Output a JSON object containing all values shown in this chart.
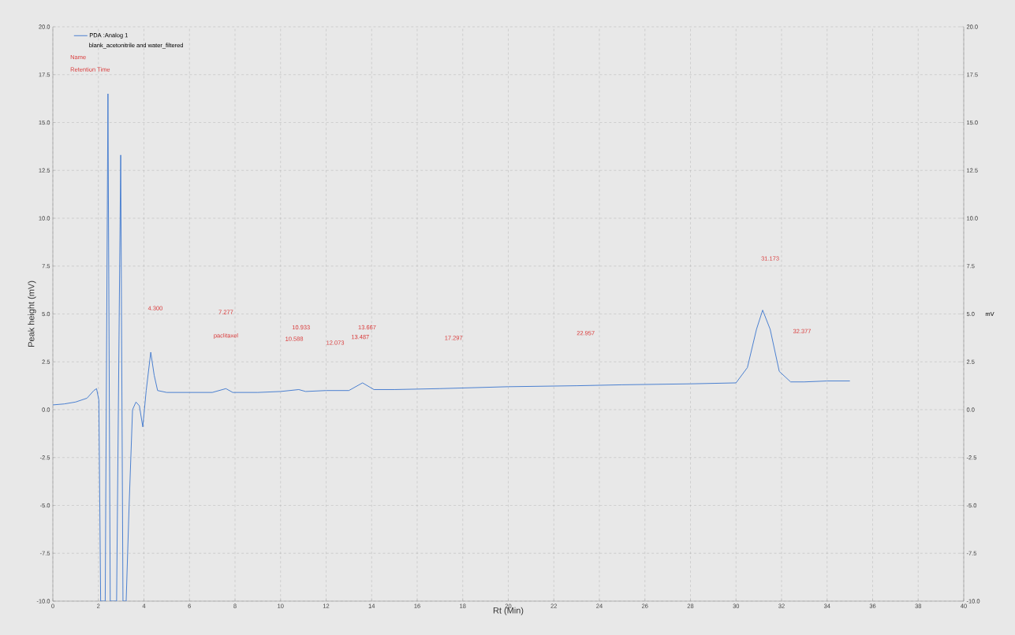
{
  "chart_data": {
    "type": "line",
    "xlabel": "Rt (Min)",
    "ylabel": "Peak height (mV)",
    "y2label": "mV",
    "xlim": [
      0,
      40
    ],
    "xticks": [
      0,
      2,
      4,
      6,
      8,
      10,
      12,
      14,
      16,
      18,
      20,
      22,
      24,
      26,
      28,
      30,
      32,
      34,
      36,
      38,
      40
    ],
    "ylim": [
      -10,
      20
    ],
    "yticks": [
      {
        "value": -10,
        "label": "-10.0"
      },
      {
        "value": -7.5,
        "label": "-7.5"
      },
      {
        "value": -5,
        "label": "-5.0"
      },
      {
        "value": -2.5,
        "label": "-2.5"
      },
      {
        "value": 0,
        "label": "0.0"
      },
      {
        "value": 2.5,
        "label": "2.5"
      },
      {
        "value": 5,
        "label": "5.0"
      },
      {
        "value": 7.5,
        "label": "7.5"
      },
      {
        "value": 10,
        "label": "10.0"
      },
      {
        "value": 12.5,
        "label": "12.5"
      },
      {
        "value": 15,
        "label": "15.0"
      },
      {
        "value": 17.5,
        "label": "17.5"
      },
      {
        "value": 20,
        "label": "20.0"
      }
    ],
    "y2lim": [
      -10,
      20
    ],
    "y2ticks": [
      {
        "value": -10,
        "label": "-10.0"
      },
      {
        "value": -7.5,
        "label": "-7.5"
      },
      {
        "value": -5,
        "label": "-5.0"
      },
      {
        "value": -2.5,
        "label": "-2.5"
      },
      {
        "value": 0,
        "label": "0.0"
      },
      {
        "value": 2.5,
        "label": "2.5"
      },
      {
        "value": 5,
        "label": "5.0"
      },
      {
        "value": 7.5,
        "label": "7.5"
      },
      {
        "value": 10,
        "label": "10.0"
      },
      {
        "value": 12.5,
        "label": "12.5"
      },
      {
        "value": 15,
        "label": "15.0"
      },
      {
        "value": 17.5,
        "label": "17.5"
      },
      {
        "value": 20,
        "label": "20.0"
      }
    ],
    "grid": true,
    "legend": "top left",
    "marker": "none",
    "line_style": "solid",
    "series": [
      {
        "name": "PDA :Analog 1",
        "color": "#4a7fd0",
        "x": [
          0,
          0.5,
          1,
          1.5,
          1.8,
          1.92,
          2.02,
          2.1,
          2.3,
          2.42,
          2.52,
          2.62,
          2.8,
          2.98,
          3.08,
          3.22,
          3.35,
          3.5,
          3.65,
          3.8,
          3.95,
          4.1,
          4.3,
          4.45,
          4.6,
          5,
          6,
          7,
          7.6,
          7.9,
          9,
          10,
          10.8,
          11.1,
          12,
          13,
          13.6,
          14.1,
          15,
          17,
          20,
          23,
          25,
          28,
          30,
          30.5,
          30.9,
          31.17,
          31.5,
          31.9,
          32.4,
          33,
          34,
          35
        ],
        "values": [
          0.25,
          0.3,
          0.4,
          0.6,
          1.0,
          1.1,
          0.5,
          -10,
          -10,
          16.5,
          -10,
          -10,
          -10,
          13.3,
          -10,
          -10,
          -5,
          0.0,
          0.4,
          0.2,
          -0.9,
          1.0,
          3.0,
          1.8,
          1.0,
          0.9,
          0.9,
          0.9,
          1.1,
          0.9,
          0.9,
          0.95,
          1.05,
          0.95,
          1.0,
          1.0,
          1.4,
          1.05,
          1.05,
          1.1,
          1.2,
          1.25,
          1.3,
          1.35,
          1.4,
          2.2,
          4.2,
          5.2,
          4.2,
          2.0,
          1.45,
          1.45,
          1.5,
          1.5
        ]
      }
    ],
    "annotations": [
      "blank_acetonitrile and water_filtered",
      "Name",
      "Retention Time",
      "4.300",
      "7.277",
      "paclitaxel",
      "10.588",
      "10.933",
      "12.073",
      "13.487",
      "13.667",
      "17.297",
      "22.957",
      "31.173",
      "32.377"
    ]
  }
}
